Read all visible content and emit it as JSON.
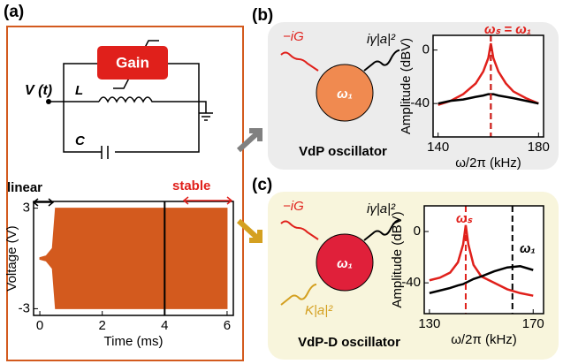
{
  "panels": [
    {
      "label": "(a)"
    },
    {
      "label": "(b)"
    },
    {
      "label": "(c)"
    }
  ],
  "circuit": {
    "gain": "Gain",
    "source": "V (t)",
    "inductor": "L",
    "capacitor": "C"
  },
  "diagram_b": {
    "gain": "−iG",
    "loss": "iγ|a|²",
    "mode": "ω₁",
    "caption": "VdP oscillator"
  },
  "diagram_c": {
    "gain": "−iG",
    "loss": "iγ|a|²",
    "kerr": "K|a|²",
    "mode": "ω₁",
    "caption": "VdP-D oscillator"
  },
  "chart_data": [
    {
      "type": "area",
      "x": [
        0,
        0.2,
        0.4,
        0.5,
        6
      ],
      "upper": [
        0.05,
        0.15,
        0.6,
        3,
        3
      ],
      "lower": [
        -0.05,
        -0.15,
        -0.6,
        -3,
        -3
      ],
      "color": "#d35a1e",
      "xlabel": "Time (ms)",
      "ylabel": "Voltage (V)",
      "xlim": [
        -0.2,
        6.2
      ],
      "ylim": [
        -3.4,
        3.4
      ],
      "xticks": [
        0,
        2,
        4,
        6
      ],
      "yticks": [
        -3,
        3
      ],
      "vlines": [
        {
          "x": 4,
          "color": "#000000"
        }
      ],
      "annotations": [
        {
          "text": "linear",
          "color": "#000000"
        },
        {
          "text": "stable",
          "color": "#e0201b"
        }
      ]
    },
    {
      "type": "line",
      "x": [
        140,
        145,
        150,
        155,
        158,
        160,
        161,
        162,
        164,
        167,
        170,
        175,
        180
      ],
      "series": [
        {
          "color": "#e0201b",
          "values": [
            -41,
            -38,
            -33,
            -25,
            -16,
            -6,
            5,
            -6,
            -16,
            -25,
            -31,
            -36,
            -40
          ]
        },
        {
          "color": "#000000",
          "values": [
            -40,
            -38,
            -37,
            -35,
            -34,
            -33,
            -33,
            -33,
            -34,
            -35,
            -36,
            -38,
            -40
          ]
        }
      ],
      "xlabel": "ω/2π (kHz)",
      "ylabel": "Amplitude (dBV)",
      "xlim": [
        138,
        182
      ],
      "ylim": [
        -65,
        11
      ],
      "xticks": [
        140,
        180
      ],
      "yticks": [
        -40,
        0
      ],
      "vlines": [
        {
          "x": 161,
          "color": "#000000"
        },
        {
          "x": 161,
          "color": "#e0201b"
        }
      ],
      "annotations": [
        {
          "text": "ωₛ = ω₁",
          "color": "#e0201b"
        }
      ]
    },
    {
      "type": "line",
      "x": [
        130,
        134,
        138,
        141,
        143,
        144,
        145,
        147,
        150,
        155,
        160,
        165,
        170
      ],
      "series": [
        {
          "color": "#e0201b",
          "values": [
            -38,
            -36,
            -32,
            -24,
            -10,
            5,
            -10,
            -26,
            -35,
            -40,
            -45,
            -48,
            -50
          ]
        },
        {
          "color": "#000000",
          "values": [
            -48,
            -46,
            -44,
            -42,
            -41,
            -40,
            -39,
            -37,
            -35,
            -31,
            -28,
            -27,
            -30
          ]
        }
      ],
      "xlabel": "ω/2π (kHz)",
      "ylabel": "Amplitude (dBV)",
      "xlim": [
        128,
        174
      ],
      "ylim": [
        -64,
        20
      ],
      "xticks": [
        130,
        170
      ],
      "yticks": [
        -40,
        0
      ],
      "vlines": [
        {
          "x": 144,
          "color": "#e0201b"
        },
        {
          "x": 162,
          "color": "#000000"
        }
      ],
      "annotations": [
        {
          "text": "ωₛ",
          "color": "#e0201b"
        },
        {
          "text": "ω₁",
          "color": "#000000"
        }
      ]
    }
  ]
}
